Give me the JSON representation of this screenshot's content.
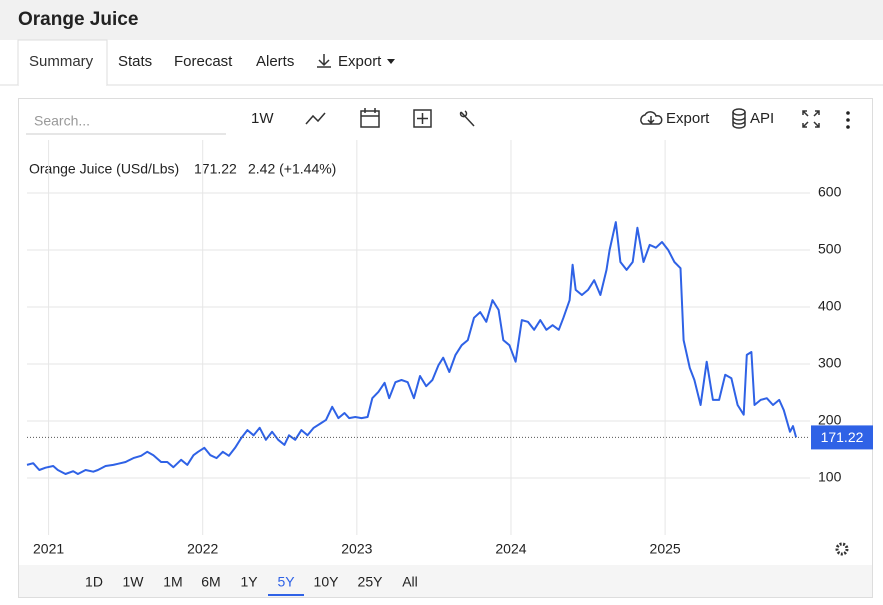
{
  "header": {
    "title": "Orange Juice"
  },
  "tabs": [
    "Summary",
    "Stats",
    "Forecast",
    "Alerts",
    "Export"
  ],
  "toolbar": {
    "search_placeholder": "Search...",
    "interval": "1W",
    "export": "Export",
    "api": "API"
  },
  "ranges": [
    "1D",
    "1W",
    "1M",
    "6M",
    "1Y",
    "5Y",
    "10Y",
    "25Y",
    "All"
  ],
  "selected_range": "5Y",
  "chart_data": {
    "type": "line",
    "x": [
      2020.86,
      2020.9,
      2020.94,
      2020.98,
      2021.03,
      2021.06,
      2021.11,
      2021.16,
      2021.19,
      2021.24,
      2021.29,
      2021.32,
      2021.37,
      2021.42,
      2021.45,
      2021.5,
      2021.55,
      2021.6,
      2021.64,
      2021.68,
      2021.73,
      2021.77,
      2021.81,
      2021.86,
      2021.9,
      2021.94,
      2021.97,
      2022.01,
      2022.05,
      2022.09,
      2022.13,
      2022.17,
      2022.21,
      2022.25,
      2022.29,
      2022.33,
      2022.37,
      2022.41,
      2022.45,
      2022.49,
      2022.53,
      2022.56,
      2022.6,
      2022.64,
      2022.68,
      2022.72,
      2022.76,
      2022.8,
      2022.84,
      2022.88,
      2022.92,
      2022.95,
      2022.99,
      2023.03,
      2023.07,
      2023.1,
      2023.14,
      2023.18,
      2023.21,
      2023.25,
      2023.29,
      2023.33,
      2023.37,
      2023.41,
      2023.45,
      2023.49,
      2023.53,
      2023.56,
      2023.6,
      2023.64,
      2023.68,
      2023.72,
      2023.76,
      2023.8,
      2023.84,
      2023.88,
      2023.92,
      2023.95,
      2023.99,
      2024.03,
      2024.07,
      2024.11,
      2024.15,
      2024.19,
      2024.23,
      2024.27,
      2024.31,
      2024.34,
      2024.38,
      2024.4,
      2024.42,
      2024.46,
      2024.5,
      2024.54,
      2024.58,
      2024.62,
      2024.64,
      2024.68,
      2024.71,
      2024.75,
      2024.79,
      2024.82,
      2024.86,
      2024.9,
      2024.94,
      2024.98,
      2025.02,
      2025.06,
      2025.1,
      2025.12,
      2025.16,
      2025.19,
      2025.23,
      2025.27,
      2025.31,
      2025.35,
      2025.39,
      2025.43,
      2025.47,
      2025.51,
      2025.53,
      2025.56,
      2025.58,
      2025.62,
      2025.66,
      2025.7,
      2025.74,
      2025.77,
      2025.81,
      2025.83,
      2025.85
    ],
    "series": [
      {
        "name": "Orange Juice (USd/Lbs)",
        "color": "#2f62e6",
        "values": [
          123,
          126,
          114,
          118,
          121,
          114,
          107,
          112,
          107,
          114,
          111,
          114,
          121,
          123,
          125,
          128,
          135,
          139,
          146,
          140,
          128,
          128,
          119,
          132,
          123,
          140,
          146,
          153,
          140,
          135,
          146,
          139,
          153,
          170,
          184,
          175,
          188,
          167,
          181,
          167,
          158,
          175,
          167,
          184,
          175,
          188,
          195,
          202,
          225,
          205,
          214,
          205,
          207,
          205,
          207,
          240,
          251,
          267,
          240,
          268,
          272,
          268,
          240,
          279,
          261,
          272,
          298,
          311,
          286,
          316,
          333,
          342,
          381,
          391,
          374,
          412,
          395,
          342,
          333,
          304,
          377,
          374,
          360,
          377,
          360,
          368,
          360,
          381,
          412,
          474,
          430,
          421,
          430,
          447,
          421,
          465,
          500,
          549,
          479,
          465,
          479,
          539,
          479,
          509,
          504,
          514,
          500,
          479,
          468,
          342,
          293,
          272,
          228,
          304,
          237,
          237,
          281,
          275,
          228,
          211,
          316,
          321,
          228,
          237,
          240,
          228,
          237,
          219,
          181,
          191,
          171.22
        ]
      }
    ],
    "change": "2.42 (+1.44%)",
    "change_color": "#2ca02c",
    "xlim": [
      2020.86,
      2025.94
    ],
    "xticks": [
      2021,
      2022,
      2023,
      2024,
      2025
    ],
    "ylim": [
      0,
      700
    ],
    "yticks": [
      100,
      200,
      300,
      400,
      500,
      600
    ],
    "grid": true
  }
}
